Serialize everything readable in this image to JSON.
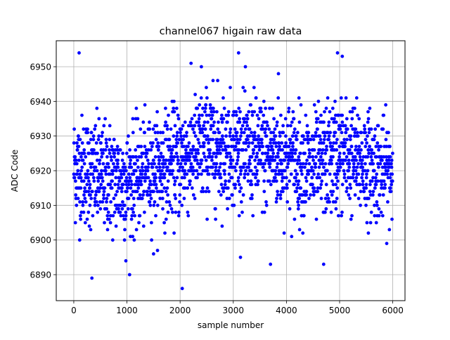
{
  "chart_data": {
    "type": "scatter",
    "title": "channel067 higain raw data",
    "xlabel": "sample number",
    "ylabel": "ADC Code",
    "xlim": [
      -330,
      6230
    ],
    "ylim": [
      6882.5,
      6957.5
    ],
    "x_ticks": [
      0,
      1000,
      2000,
      3000,
      4000,
      5000,
      6000
    ],
    "y_ticks": [
      6890,
      6900,
      6910,
      6920,
      6930,
      6940,
      6950
    ],
    "grid": true,
    "marker_color": "#0000ff",
    "n_samples": 6000,
    "baseline_mean": 6922,
    "band_envelope": [
      {
        "x": 0,
        "low": 6905,
        "high": 6937
      },
      {
        "x": 500,
        "low": 6902,
        "high": 6935
      },
      {
        "x": 1000,
        "low": 6900,
        "high": 6933
      },
      {
        "x": 1500,
        "low": 6906,
        "high": 6935
      },
      {
        "x": 2000,
        "low": 6906,
        "high": 6940
      },
      {
        "x": 2500,
        "low": 6910,
        "high": 6944
      },
      {
        "x": 3000,
        "low": 6910,
        "high": 6942
      },
      {
        "x": 3500,
        "low": 6908,
        "high": 6942
      },
      {
        "x": 4000,
        "low": 6908,
        "high": 6940
      },
      {
        "x": 4500,
        "low": 6904,
        "high": 6937
      },
      {
        "x": 5000,
        "low": 6908,
        "high": 6942
      },
      {
        "x": 5500,
        "low": 6906,
        "high": 6938
      },
      {
        "x": 5900,
        "low": 6905,
        "high": 6935
      }
    ],
    "notable_points": [
      {
        "x": 100,
        "y": 6954
      },
      {
        "x": 340,
        "y": 6889
      },
      {
        "x": 2040,
        "y": 6886
      },
      {
        "x": 3100,
        "y": 6954
      },
      {
        "x": 3700,
        "y": 6893
      },
      {
        "x": 4700,
        "y": 6893
      },
      {
        "x": 4960,
        "y": 6954
      },
      {
        "x": 5050,
        "y": 6953
      },
      {
        "x": 980,
        "y": 6894
      },
      {
        "x": 1500,
        "y": 6896
      },
      {
        "x": 2400,
        "y": 6950
      },
      {
        "x": 3850,
        "y": 6948
      }
    ]
  }
}
